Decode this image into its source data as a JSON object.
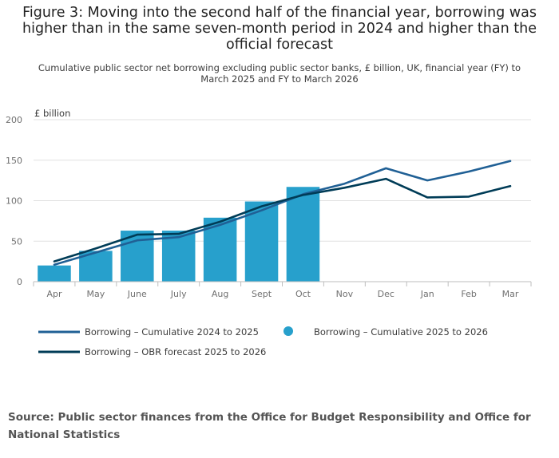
{
  "title": "Figure 3: Moving into the second half of the financial year, borrowing was higher than in the same seven-month period in 2024 and higher than the official forecast",
  "subtitle": "Cumulative public sector net borrowing excluding public sector banks, £ billion, UK, financial year (FY) to March 2025 and FY to March 2026",
  "source": "Source: Public sector finances from the Office for Budget Responsibility and Office for National Statistics",
  "colors": {
    "series_2024": "#206095",
    "series_2025": "#27a0cc",
    "series_obr": "#003c57",
    "grid": "#e0e0e0",
    "axis": "#bebebe",
    "tick_text": "#707070"
  },
  "chart_data": {
    "type": "bar+line",
    "ylabel": "£ billion",
    "ylim": [
      0,
      200
    ],
    "yticks": [
      0,
      50,
      100,
      150,
      200
    ],
    "categories": [
      "Apr",
      "May",
      "June",
      "July",
      "Aug",
      "Sept",
      "Oct",
      "Nov",
      "Dec",
      "Jan",
      "Feb",
      "Mar"
    ],
    "series": [
      {
        "name": "Borrowing – Cumulative 2024 to 2025",
        "type": "line",
        "color": "#206095",
        "values": [
          21,
          36,
          51,
          55,
          70,
          88,
          108,
          121,
          140,
          125,
          136,
          149
        ]
      },
      {
        "name": "Borrowing – Cumulative 2025 to 2026",
        "type": "bar",
        "color": "#27a0cc",
        "values": [
          20,
          38,
          63,
          63,
          79,
          99,
          117,
          null,
          null,
          null,
          null,
          null
        ]
      },
      {
        "name": "Borrowing – OBR forecast 2025 to 2026",
        "type": "line",
        "color": "#003c57",
        "values": [
          25,
          41,
          58,
          59,
          74,
          93,
          107,
          116,
          127,
          104,
          105,
          118
        ]
      }
    ],
    "legend": [
      {
        "label": "Borrowing – Cumulative 2024 to 2025",
        "marker": "line",
        "color": "#206095"
      },
      {
        "label": "Borrowing – Cumulative 2025 to 2026",
        "marker": "dot",
        "color": "#27a0cc"
      },
      {
        "label": "Borrowing – OBR forecast 2025 to 2026",
        "marker": "line",
        "color": "#003c57"
      }
    ]
  }
}
